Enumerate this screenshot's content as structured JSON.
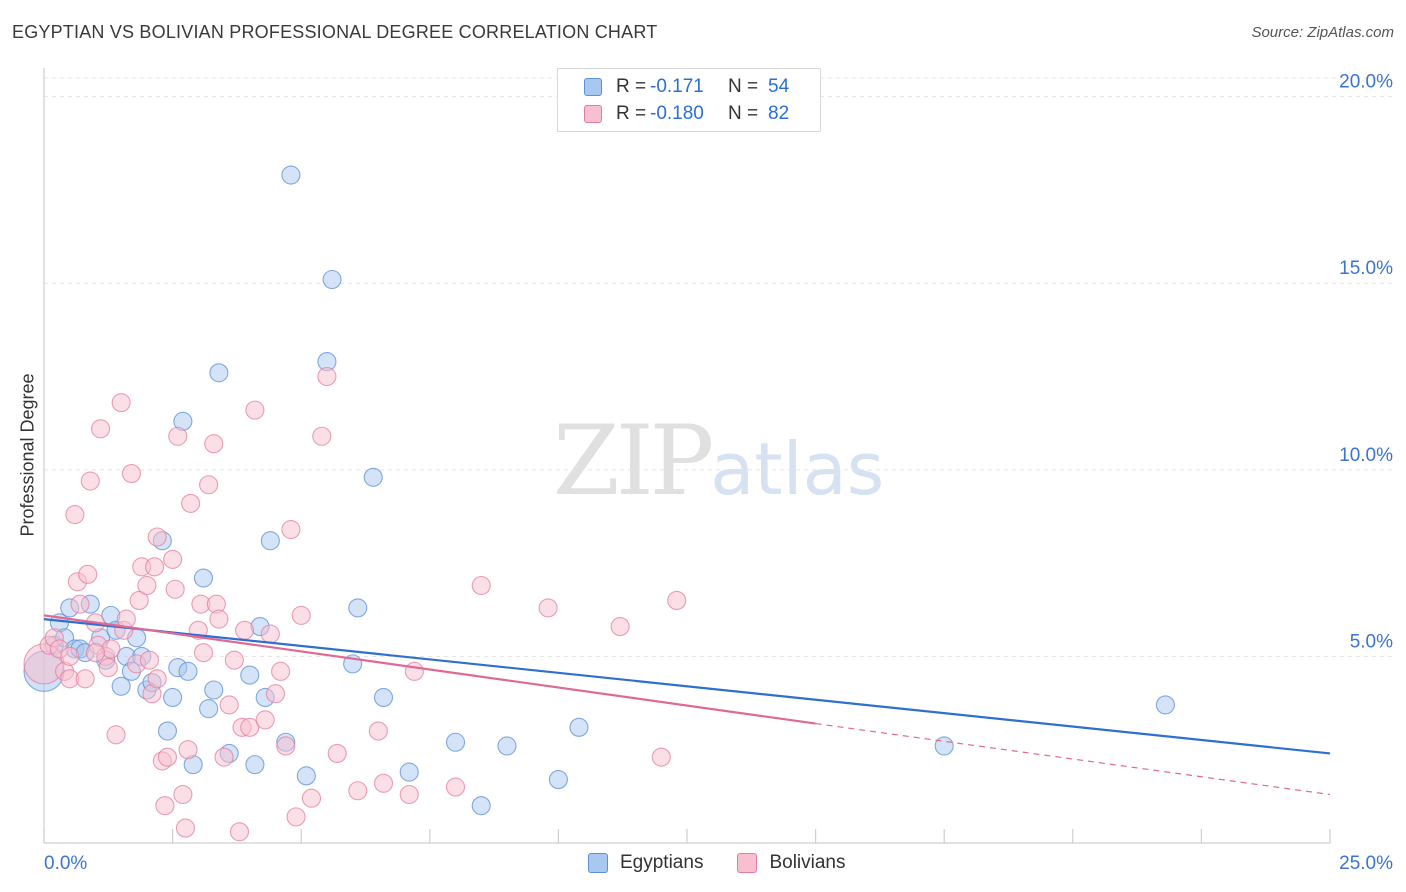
{
  "header": {
    "title": "EGYPTIAN VS BOLIVIAN PROFESSIONAL DEGREE CORRELATION CHART",
    "source": "Source: ZipAtlas.com"
  },
  "watermark": {
    "zip": "ZIP",
    "atlas": "atlas"
  },
  "legend": {
    "r_label": "R =",
    "n_label": "N =",
    "rows": [
      {
        "r": "-0.171",
        "n": "54",
        "color": "#a9c8f0",
        "border": "#5b8fd6"
      },
      {
        "r": "-0.180",
        "n": "82",
        "color": "#f7bfd0",
        "border": "#e47d9e"
      }
    ]
  },
  "bottom_legend": [
    {
      "label": "Egyptians",
      "color": "#a9c8f0",
      "border": "#5b8fd6"
    },
    {
      "label": "Bolivians",
      "color": "#f7bfd0",
      "border": "#e47d9e"
    }
  ],
  "chart_data": {
    "type": "scatter",
    "title": "EGYPTIAN VS BOLIVIAN PROFESSIONAL DEGREE CORRELATION CHART",
    "xlabel": "",
    "ylabel": "Professional Degree",
    "xlim": [
      0,
      25
    ],
    "ylim": [
      0,
      20.5
    ],
    "x_tick_labels": {
      "min": "0.0%",
      "max": "25.0%"
    },
    "y_ticks": [
      5,
      10,
      15,
      20
    ],
    "y_tick_labels": [
      "5.0%",
      "10.0%",
      "15.0%",
      "20.0%"
    ],
    "grid": true,
    "series": [
      {
        "name": "Egyptians",
        "color": "#5b8fd6",
        "fill": "#a9c8f0",
        "trend": {
          "x0": 0,
          "y0": 6.0,
          "x1": 25,
          "y1": 2.4,
          "dashed_from": null
        },
        "points": [
          [
            0.0,
            4.6
          ],
          [
            0.2,
            5.3
          ],
          [
            0.3,
            5.9
          ],
          [
            0.4,
            5.5
          ],
          [
            0.5,
            6.3
          ],
          [
            0.6,
            5.2
          ],
          [
            0.7,
            5.2
          ],
          [
            0.8,
            5.1
          ],
          [
            0.9,
            6.4
          ],
          [
            1.1,
            5.5
          ],
          [
            1.2,
            4.9
          ],
          [
            1.3,
            6.1
          ],
          [
            1.4,
            5.7
          ],
          [
            1.5,
            4.2
          ],
          [
            1.6,
            5.0
          ],
          [
            1.7,
            4.6
          ],
          [
            1.8,
            5.5
          ],
          [
            1.9,
            5.0
          ],
          [
            2.0,
            4.1
          ],
          [
            2.1,
            4.3
          ],
          [
            2.3,
            8.1
          ],
          [
            2.4,
            3.0
          ],
          [
            2.5,
            3.9
          ],
          [
            2.6,
            4.7
          ],
          [
            2.7,
            11.3
          ],
          [
            2.8,
            4.6
          ],
          [
            2.9,
            2.1
          ],
          [
            3.1,
            7.1
          ],
          [
            3.2,
            3.6
          ],
          [
            3.3,
            4.1
          ],
          [
            3.4,
            12.6
          ],
          [
            3.6,
            2.4
          ],
          [
            4.0,
            4.5
          ],
          [
            4.1,
            2.1
          ],
          [
            4.2,
            5.8
          ],
          [
            4.3,
            3.9
          ],
          [
            4.4,
            8.1
          ],
          [
            4.7,
            2.7
          ],
          [
            4.8,
            17.9
          ],
          [
            5.1,
            1.8
          ],
          [
            5.5,
            12.9
          ],
          [
            5.6,
            15.1
          ],
          [
            6.0,
            4.8
          ],
          [
            6.1,
            6.3
          ],
          [
            6.4,
            9.8
          ],
          [
            6.6,
            3.9
          ],
          [
            7.1,
            1.9
          ],
          [
            8.0,
            2.7
          ],
          [
            8.5,
            1.0
          ],
          [
            9.0,
            2.6
          ],
          [
            10.0,
            1.7
          ],
          [
            10.4,
            3.1
          ],
          [
            17.5,
            2.6
          ],
          [
            21.8,
            3.7
          ]
        ]
      },
      {
        "name": "Bolivians",
        "color": "#e47d9e",
        "fill": "#f7bfd0",
        "trend": {
          "x0": 0,
          "y0": 6.1,
          "x1": 15,
          "y1": 3.2,
          "dashed_to": 25,
          "dashed_y": 1.3
        },
        "points": [
          [
            0.0,
            4.8
          ],
          [
            0.1,
            5.3
          ],
          [
            0.2,
            5.5
          ],
          [
            0.3,
            5.2
          ],
          [
            0.4,
            4.6
          ],
          [
            0.5,
            4.4
          ],
          [
            0.6,
            8.8
          ],
          [
            0.65,
            7.0
          ],
          [
            0.7,
            6.4
          ],
          [
            0.8,
            4.4
          ],
          [
            0.85,
            7.2
          ],
          [
            0.9,
            9.7
          ],
          [
            1.0,
            5.9
          ],
          [
            1.05,
            5.3
          ],
          [
            1.1,
            11.1
          ],
          [
            1.2,
            5.0
          ],
          [
            1.25,
            4.7
          ],
          [
            1.3,
            5.2
          ],
          [
            1.4,
            2.9
          ],
          [
            1.5,
            11.8
          ],
          [
            1.55,
            5.7
          ],
          [
            1.6,
            6.0
          ],
          [
            1.7,
            9.9
          ],
          [
            1.8,
            4.8
          ],
          [
            1.85,
            6.5
          ],
          [
            1.9,
            7.4
          ],
          [
            2.0,
            6.9
          ],
          [
            2.05,
            4.9
          ],
          [
            2.1,
            4.0
          ],
          [
            2.15,
            7.4
          ],
          [
            2.2,
            8.2
          ],
          [
            2.3,
            2.2
          ],
          [
            2.35,
            1.0
          ],
          [
            2.4,
            2.3
          ],
          [
            2.5,
            7.6
          ],
          [
            2.55,
            6.8
          ],
          [
            2.6,
            10.9
          ],
          [
            2.7,
            1.3
          ],
          [
            2.75,
            0.4
          ],
          [
            2.8,
            2.5
          ],
          [
            2.85,
            9.1
          ],
          [
            3.0,
            5.7
          ],
          [
            3.05,
            6.4
          ],
          [
            3.1,
            5.1
          ],
          [
            3.2,
            9.6
          ],
          [
            3.3,
            10.7
          ],
          [
            3.35,
            6.4
          ],
          [
            3.4,
            6.0
          ],
          [
            3.5,
            2.3
          ],
          [
            3.7,
            4.9
          ],
          [
            3.8,
            0.3
          ],
          [
            3.85,
            3.1
          ],
          [
            3.9,
            5.7
          ],
          [
            4.0,
            3.1
          ],
          [
            4.1,
            11.6
          ],
          [
            4.3,
            3.3
          ],
          [
            4.4,
            5.6
          ],
          [
            4.5,
            4.0
          ],
          [
            4.6,
            4.6
          ],
          [
            4.8,
            8.4
          ],
          [
            4.9,
            0.7
          ],
          [
            5.0,
            6.1
          ],
          [
            5.2,
            1.2
          ],
          [
            5.4,
            10.9
          ],
          [
            5.5,
            12.5
          ],
          [
            5.7,
            2.4
          ],
          [
            6.1,
            1.4
          ],
          [
            6.5,
            3.0
          ],
          [
            6.6,
            1.6
          ],
          [
            7.1,
            1.3
          ],
          [
            7.2,
            4.6
          ],
          [
            8.0,
            1.5
          ],
          [
            8.5,
            6.9
          ],
          [
            9.8,
            6.3
          ],
          [
            11.2,
            5.8
          ],
          [
            12.0,
            2.3
          ],
          [
            12.3,
            6.5
          ],
          [
            2.2,
            4.4
          ],
          [
            1.0,
            5.1
          ],
          [
            0.5,
            5.0
          ],
          [
            3.6,
            3.7
          ],
          [
            4.7,
            2.6
          ]
        ]
      }
    ]
  }
}
